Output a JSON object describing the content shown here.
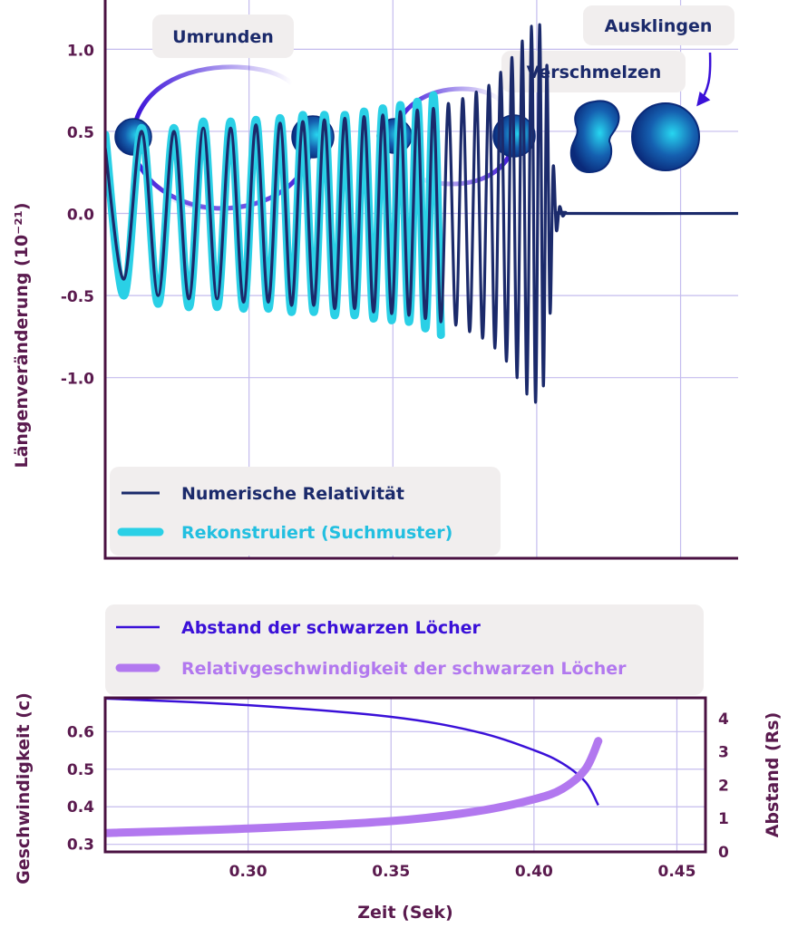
{
  "colors": {
    "frame": "#4a1142",
    "grid": "#c4bcee",
    "numerical": "#1b2a6b",
    "reconstructed": "#2ad0e6",
    "separation": "#3a10d8",
    "velocity": "#b278ef",
    "legend_bg": "#f1eeee",
    "legend_text_numerical": "#1b2a6b",
    "legend_text_reconstructed": "#22bfe0",
    "legend_text_separation": "#3a10d8",
    "legend_text_velocity": "#b278ef",
    "axis_label": "#5a1a4e",
    "ball_light": "#27d6f0",
    "ball_dark": "#0a2a7a"
  },
  "phases": {
    "inspiral": "Umrunden",
    "merger": "Verschmelzen",
    "ringdown": "Ausklingen"
  },
  "chart_data": [
    {
      "type": "line",
      "xlabel": "",
      "ylabel": "Längenveränderung (10⁻²¹)",
      "xlim": [
        0.25,
        0.47
      ],
      "ylim": [
        -2.1,
        1.3
      ],
      "x_ticks": [
        0.3,
        0.35,
        0.4,
        0.45
      ],
      "y_ticks": [
        "1.0",
        "0.5",
        "0.0",
        "-0.5",
        "-1.0"
      ],
      "grid": true,
      "legend_position": "bottom-left",
      "series": [
        {
          "name": "Numerische Relativität",
          "points": [
            [
              0.25,
              0.4
            ],
            [
              0.2565,
              -0.4
            ],
            [
              0.2627,
              0.5
            ],
            [
              0.2684,
              -0.5
            ],
            [
              0.2739,
              0.5
            ],
            [
              0.2791,
              -0.52
            ],
            [
              0.2841,
              0.52
            ],
            [
              0.2889,
              -0.52
            ],
            [
              0.2936,
              0.52
            ],
            [
              0.2981,
              -0.54
            ],
            [
              0.3024,
              0.54
            ],
            [
              0.3067,
              -0.54
            ],
            [
              0.3108,
              0.55
            ],
            [
              0.3148,
              -0.56
            ],
            [
              0.3187,
              0.56
            ],
            [
              0.3225,
              -0.56
            ],
            [
              0.3262,
              0.57
            ],
            [
              0.3298,
              -0.58
            ],
            [
              0.3333,
              0.58
            ],
            [
              0.3367,
              -0.58
            ],
            [
              0.34,
              0.59
            ],
            [
              0.3433,
              -0.6
            ],
            [
              0.3465,
              0.6
            ],
            [
              0.3496,
              -0.61
            ],
            [
              0.3526,
              0.62
            ],
            [
              0.3556,
              -0.62
            ],
            [
              0.3585,
              0.63
            ],
            [
              0.3613,
              -0.64
            ],
            [
              0.3641,
              0.64
            ],
            [
              0.3667,
              -0.66
            ],
            [
              0.3693,
              0.67
            ],
            [
              0.3719,
              -0.68
            ],
            [
              0.3743,
              0.7
            ],
            [
              0.3767,
              -0.72
            ],
            [
              0.379,
              0.74
            ],
            [
              0.3812,
              -0.76
            ],
            [
              0.3834,
              0.78
            ],
            [
              0.3855,
              -0.82
            ],
            [
              0.3875,
              0.86
            ],
            [
              0.3895,
              -0.9
            ],
            [
              0.3914,
              0.95
            ],
            [
              0.3932,
              -1.0
            ],
            [
              0.395,
              1.05
            ],
            [
              0.3966,
              -1.1
            ],
            [
              0.3982,
              1.14
            ],
            [
              0.3996,
              -1.15
            ],
            [
              0.401,
              1.15
            ],
            [
              0.4023,
              -1.05
            ],
            [
              0.4035,
              0.9
            ],
            [
              0.4046,
              -0.6
            ],
            [
              0.4057,
              0.28
            ],
            [
              0.4068,
              -0.1
            ],
            [
              0.4079,
              0.04
            ],
            [
              0.409,
              -0.015
            ],
            [
              0.4101,
              0.006
            ],
            [
              0.4112,
              0.0
            ],
            [
              0.47,
              0.0
            ]
          ]
        },
        {
          "name": "Rekonstruiert (Suchmuster)",
          "points": [
            [
              0.25,
              0.48
            ],
            [
              0.2565,
              -0.5
            ],
            [
              0.2627,
              0.52
            ],
            [
              0.2684,
              -0.55
            ],
            [
              0.2739,
              0.52
            ],
            [
              0.2791,
              -0.57
            ],
            [
              0.2841,
              0.56
            ],
            [
              0.2889,
              -0.57
            ],
            [
              0.2936,
              0.56
            ],
            [
              0.2981,
              -0.58
            ],
            [
              0.3024,
              0.57
            ],
            [
              0.3067,
              -0.58
            ],
            [
              0.3108,
              0.58
            ],
            [
              0.3148,
              -0.6
            ],
            [
              0.3187,
              0.6
            ],
            [
              0.3225,
              -0.6
            ],
            [
              0.3262,
              0.6
            ],
            [
              0.3298,
              -0.62
            ],
            [
              0.3333,
              0.6
            ],
            [
              0.3367,
              -0.62
            ],
            [
              0.34,
              0.62
            ],
            [
              0.3433,
              -0.64
            ],
            [
              0.3465,
              0.64
            ],
            [
              0.3496,
              -0.65
            ],
            [
              0.3526,
              0.66
            ],
            [
              0.3556,
              -0.66
            ],
            [
              0.3585,
              0.68
            ],
            [
              0.3613,
              -0.7
            ],
            [
              0.3641,
              0.72
            ],
            [
              0.3667,
              -0.74
            ]
          ]
        }
      ]
    },
    {
      "type": "line",
      "xlabel": "Zeit (Sek)",
      "ylabel_left": "Geschwindigkeit (c)",
      "ylabel_right": "Abstand (Rs)",
      "xlim": [
        0.25,
        0.46
      ],
      "ylim_left": [
        0.28,
        0.69
      ],
      "ylim_right": [
        0,
        4.62
      ],
      "x_ticks": [
        "0.30",
        "0.35",
        "0.40",
        "0.45"
      ],
      "y_ticks_left": [
        "0.6",
        "0.5",
        "0.4",
        "0.3"
      ],
      "y_ticks_right": [
        "4",
        "3",
        "2",
        "1",
        "0"
      ],
      "grid": true,
      "legend_position": "top-left",
      "series": [
        {
          "name": "Abstand der schwarzen Löcher",
          "axis": "right",
          "points": [
            [
              0.25,
              4.6
            ],
            [
              0.3,
              4.4
            ],
            [
              0.35,
              4.05
            ],
            [
              0.38,
              3.6
            ],
            [
              0.4,
              3.05
            ],
            [
              0.41,
              2.65
            ],
            [
              0.418,
              2.1
            ],
            [
              0.4225,
              1.4
            ]
          ]
        },
        {
          "name": "Relativgeschwindigkeit der schwarzen Löcher",
          "axis": "left",
          "points": [
            [
              0.25,
              0.33
            ],
            [
              0.3,
              0.342
            ],
            [
              0.35,
              0.362
            ],
            [
              0.38,
              0.388
            ],
            [
              0.4,
              0.42
            ],
            [
              0.41,
              0.448
            ],
            [
              0.418,
              0.5
            ],
            [
              0.4225,
              0.575
            ]
          ]
        }
      ]
    }
  ]
}
